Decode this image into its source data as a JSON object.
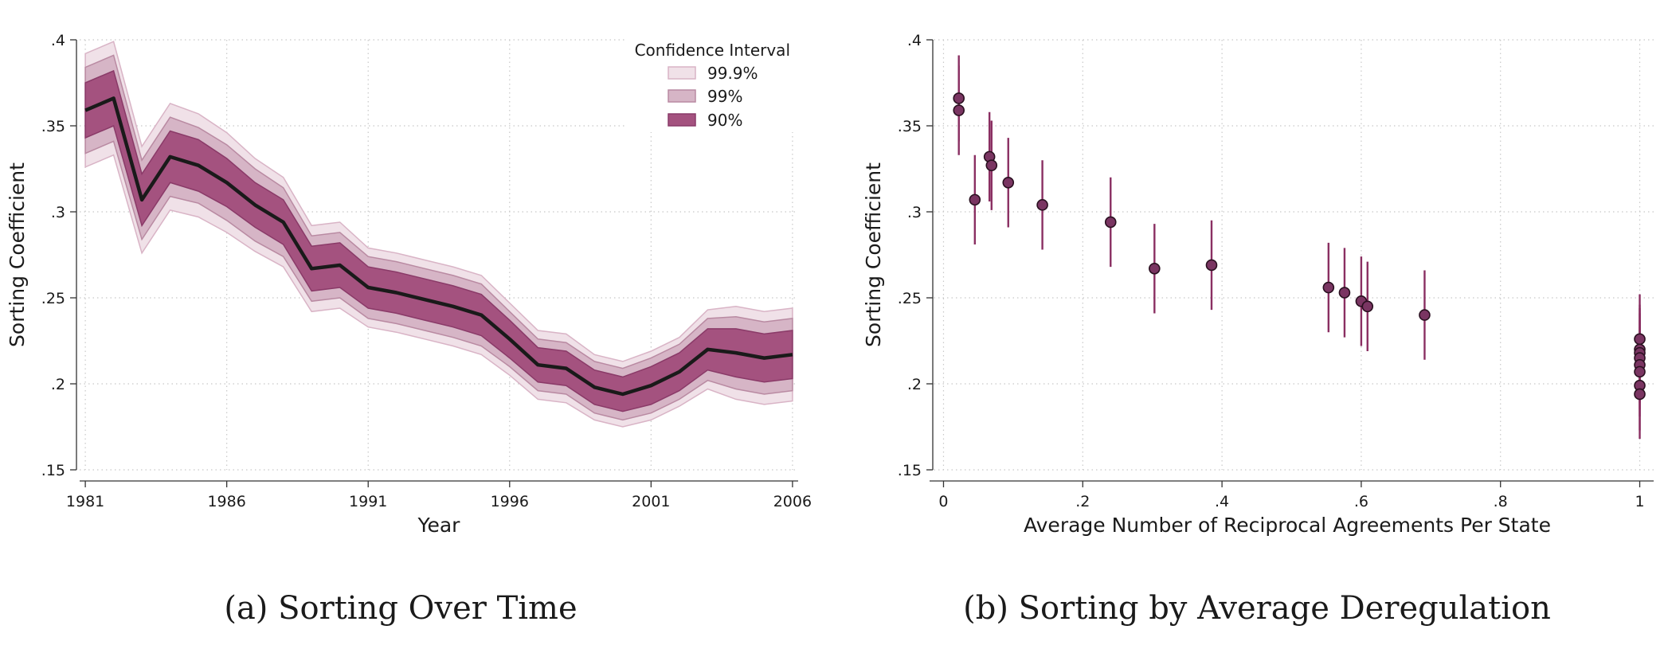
{
  "chart_data": [
    {
      "type": "line",
      "caption": "(a) Sorting Over Time",
      "xlabel": "Year",
      "ylabel": "Sorting Coefficient",
      "xlim": [
        1981,
        2006
      ],
      "ylim": [
        0.15,
        0.4
      ],
      "xticks": [
        1981,
        1986,
        1991,
        1996,
        2001,
        2006
      ],
      "xtick_labels": [
        "1981",
        "1986",
        "1991",
        "1996",
        "2001",
        "2006"
      ],
      "yticks": [
        0.15,
        0.2,
        0.25,
        0.3,
        0.35,
        0.4
      ],
      "ytick_labels": [
        ".15",
        ".2",
        ".25",
        ".3",
        ".35",
        ".4"
      ],
      "grid": "dotted",
      "legend": {
        "title": "Confidence Interval",
        "placement": "top-right",
        "entries": [
          {
            "label": "99.9%",
            "color": "#f0e1e8",
            "edge": "#d9b4c6"
          },
          {
            "label": "99%",
            "color": "#d6b5c6",
            "edge": "#b98aa2"
          },
          {
            "label": "90%",
            "color": "#a4527f",
            "edge": "#8a3a68"
          }
        ]
      },
      "line_color": "#1a1a1a",
      "x": [
        1981,
        1982,
        1983,
        1984,
        1985,
        1986,
        1987,
        1988,
        1989,
        1990,
        1991,
        1992,
        1993,
        1994,
        1995,
        1996,
        1997,
        1998,
        1999,
        2000,
        2001,
        2002,
        2003,
        2004,
        2005,
        2006
      ],
      "y": [
        0.359,
        0.366,
        0.307,
        0.332,
        0.327,
        0.317,
        0.304,
        0.294,
        0.267,
        0.269,
        0.256,
        0.253,
        0.249,
        0.245,
        0.24,
        0.226,
        0.211,
        0.209,
        0.198,
        0.194,
        0.199,
        0.207,
        0.22,
        0.218,
        0.215,
        0.217
      ],
      "bands": [
        {
          "name": "99.9%",
          "half_width": [
            0.033,
            0.033,
            0.031,
            0.031,
            0.03,
            0.029,
            0.027,
            0.026,
            0.025,
            0.025,
            0.023,
            0.023,
            0.023,
            0.023,
            0.023,
            0.021,
            0.02,
            0.02,
            0.019,
            0.019,
            0.02,
            0.02,
            0.023,
            0.027,
            0.027,
            0.027
          ]
        },
        {
          "name": "99%",
          "half_width": [
            0.025,
            0.025,
            0.023,
            0.023,
            0.022,
            0.022,
            0.021,
            0.02,
            0.019,
            0.019,
            0.018,
            0.018,
            0.018,
            0.018,
            0.018,
            0.016,
            0.015,
            0.015,
            0.015,
            0.015,
            0.016,
            0.016,
            0.018,
            0.021,
            0.021,
            0.021
          ]
        },
        {
          "name": "90%",
          "half_width": [
            0.016,
            0.016,
            0.015,
            0.015,
            0.015,
            0.014,
            0.013,
            0.013,
            0.013,
            0.013,
            0.012,
            0.012,
            0.012,
            0.012,
            0.012,
            0.011,
            0.01,
            0.01,
            0.01,
            0.01,
            0.011,
            0.011,
            0.012,
            0.014,
            0.014,
            0.014
          ]
        }
      ]
    },
    {
      "type": "scatter",
      "caption": "(b) Sorting by Average Deregulation",
      "xlabel": "Average Number of Reciprocal Agreements Per State",
      "ylabel": "Sorting Coefficient",
      "xlim": [
        0,
        1
      ],
      "ylim": [
        0.15,
        0.4
      ],
      "xticks": [
        0,
        0.2,
        0.4,
        0.6,
        0.8,
        1
      ],
      "xtick_labels": [
        "0",
        ".2",
        ".4",
        ".6",
        ".8",
        "1"
      ],
      "yticks": [
        0.15,
        0.2,
        0.25,
        0.3,
        0.35,
        0.4
      ],
      "ytick_labels": [
        ".15",
        ".2",
        ".25",
        ".3",
        ".35",
        ".4"
      ],
      "grid": "dotted",
      "marker_color": "#7a3562",
      "bar_color": "#8a2f62",
      "points": [
        {
          "x": 0.022,
          "y": 0.366,
          "lo": 0.341,
          "hi": 0.391
        },
        {
          "x": 0.022,
          "y": 0.359,
          "lo": 0.333,
          "hi": 0.385
        },
        {
          "x": 0.045,
          "y": 0.307,
          "lo": 0.281,
          "hi": 0.333
        },
        {
          "x": 0.066,
          "y": 0.332,
          "lo": 0.306,
          "hi": 0.358
        },
        {
          "x": 0.069,
          "y": 0.327,
          "lo": 0.301,
          "hi": 0.353
        },
        {
          "x": 0.093,
          "y": 0.317,
          "lo": 0.291,
          "hi": 0.343
        },
        {
          "x": 0.142,
          "y": 0.304,
          "lo": 0.278,
          "hi": 0.33
        },
        {
          "x": 0.24,
          "y": 0.294,
          "lo": 0.268,
          "hi": 0.32
        },
        {
          "x": 0.303,
          "y": 0.267,
          "lo": 0.241,
          "hi": 0.293
        },
        {
          "x": 0.385,
          "y": 0.269,
          "lo": 0.243,
          "hi": 0.295
        },
        {
          "x": 0.553,
          "y": 0.256,
          "lo": 0.23,
          "hi": 0.282
        },
        {
          "x": 0.576,
          "y": 0.253,
          "lo": 0.227,
          "hi": 0.279
        },
        {
          "x": 0.6,
          "y": 0.248,
          "lo": 0.222,
          "hi": 0.274
        },
        {
          "x": 0.609,
          "y": 0.245,
          "lo": 0.219,
          "hi": 0.271
        },
        {
          "x": 0.691,
          "y": 0.24,
          "lo": 0.214,
          "hi": 0.266
        },
        {
          "x": 1.0,
          "y": 0.226,
          "lo": 0.2,
          "hi": 0.252
        },
        {
          "x": 1.0,
          "y": 0.22,
          "lo": 0.194,
          "hi": 0.246
        },
        {
          "x": 1.0,
          "y": 0.218,
          "lo": 0.192,
          "hi": 0.244
        },
        {
          "x": 1.0,
          "y": 0.215,
          "lo": 0.189,
          "hi": 0.241
        },
        {
          "x": 1.0,
          "y": 0.211,
          "lo": 0.185,
          "hi": 0.237
        },
        {
          "x": 1.0,
          "y": 0.207,
          "lo": 0.181,
          "hi": 0.233
        },
        {
          "x": 1.0,
          "y": 0.199,
          "lo": 0.173,
          "hi": 0.225
        },
        {
          "x": 1.0,
          "y": 0.194,
          "lo": 0.168,
          "hi": 0.22
        }
      ]
    }
  ]
}
